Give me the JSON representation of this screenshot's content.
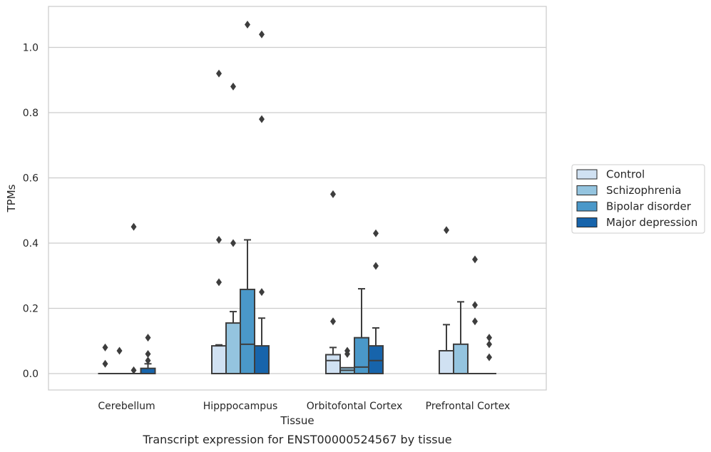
{
  "caption": "Transcript expression for ENST00000524567 by tissue",
  "chart_data": {
    "type": "box",
    "xlabel": "Tissue",
    "ylabel": "TPMs",
    "ylim": [
      -0.05,
      1.13
    ],
    "yticks": [
      0.0,
      0.2,
      0.4,
      0.6,
      0.8,
      1.0
    ],
    "ytick_labels": [
      "0.0",
      "0.2",
      "0.4",
      "0.6",
      "0.8",
      "1.0"
    ],
    "grid": "horizontal",
    "legend_position": "right",
    "categories": [
      "Cerebellum",
      "Hipppocampus",
      "Orbitofontal Cortex",
      "Prefrontal Cortex"
    ],
    "series": [
      {
        "name": "Control",
        "color": "#d0e1f2",
        "boxes": [
          {
            "q1": 0.0,
            "median": 0.0,
            "q3": 0.0,
            "whisker_low": 0.0,
            "whisker_high": 0.0,
            "outliers": [
              0.08,
              0.03
            ]
          },
          {
            "q1": 0.0,
            "median": 0.0,
            "q3": 0.085,
            "whisker_low": 0.0,
            "whisker_high": 0.088,
            "outliers": [
              0.92,
              0.41,
              0.28
            ]
          },
          {
            "q1": 0.0,
            "median": 0.04,
            "q3": 0.058,
            "whisker_low": 0.0,
            "whisker_high": 0.08,
            "outliers": [
              0.55,
              0.16
            ]
          },
          {
            "q1": 0.0,
            "median": 0.0,
            "q3": 0.07,
            "whisker_low": 0.0,
            "whisker_high": 0.15,
            "outliers": [
              0.44
            ]
          }
        ]
      },
      {
        "name": "Schizophrenia",
        "color": "#94c4df",
        "boxes": [
          {
            "q1": 0.0,
            "median": 0.0,
            "q3": 0.0,
            "whisker_low": 0.0,
            "whisker_high": 0.0,
            "outliers": [
              0.07
            ]
          },
          {
            "q1": 0.0,
            "median": 0.0,
            "q3": 0.155,
            "whisker_low": 0.0,
            "whisker_high": 0.19,
            "outliers": [
              0.88,
              0.4
            ]
          },
          {
            "q1": 0.0,
            "median": 0.01,
            "q3": 0.018,
            "whisker_low": 0.0,
            "whisker_high": 0.018,
            "outliers": [
              0.07,
              0.06
            ]
          },
          {
            "q1": 0.0,
            "median": 0.0,
            "q3": 0.09,
            "whisker_low": 0.0,
            "whisker_high": 0.22,
            "outliers": []
          }
        ]
      },
      {
        "name": "Bipolar disorder",
        "color": "#4a98c9",
        "boxes": [
          {
            "q1": 0.0,
            "median": 0.0,
            "q3": 0.0,
            "whisker_low": 0.0,
            "whisker_high": 0.0,
            "outliers": [
              0.45,
              0.01
            ]
          },
          {
            "q1": 0.0,
            "median": 0.09,
            "q3": 0.258,
            "whisker_low": 0.0,
            "whisker_high": 0.41,
            "outliers": [
              1.07
            ]
          },
          {
            "q1": 0.0,
            "median": 0.02,
            "q3": 0.11,
            "whisker_low": 0.0,
            "whisker_high": 0.26,
            "outliers": []
          },
          {
            "q1": 0.0,
            "median": 0.0,
            "q3": 0.0,
            "whisker_low": 0.0,
            "whisker_high": 0.0,
            "outliers": [
              0.35,
              0.21,
              0.16
            ]
          }
        ]
      },
      {
        "name": "Major depression",
        "color": "#1764ab",
        "boxes": [
          {
            "q1": 0.0,
            "median": 0.0,
            "q3": 0.016,
            "whisker_low": 0.0,
            "whisker_high": 0.03,
            "outliers": [
              0.11,
              0.06,
              0.04
            ]
          },
          {
            "q1": 0.0,
            "median": 0.0,
            "q3": 0.085,
            "whisker_low": 0.0,
            "whisker_high": 0.17,
            "outliers": [
              1.04,
              0.78,
              0.25
            ]
          },
          {
            "q1": 0.0,
            "median": 0.04,
            "q3": 0.085,
            "whisker_low": 0.0,
            "whisker_high": 0.14,
            "outliers": [
              0.43,
              0.33
            ]
          },
          {
            "q1": 0.0,
            "median": 0.0,
            "q3": 0.0,
            "whisker_low": 0.0,
            "whisker_high": 0.0,
            "outliers": [
              0.11,
              0.09,
              0.05
            ]
          }
        ]
      }
    ]
  }
}
